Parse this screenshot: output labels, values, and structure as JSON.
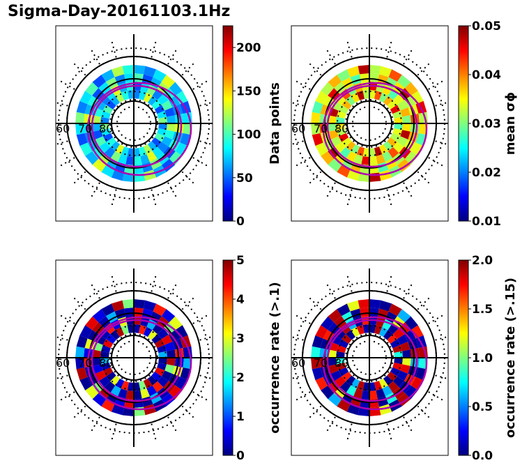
{
  "title": "Sigma-Day-20161103.1Hz",
  "colormap": [
    "#00007f",
    "#0000ff",
    "#007fff",
    "#00ffff",
    "#7fff7f",
    "#ffff00",
    "#ff7f00",
    "#ff0000",
    "#7f0000"
  ],
  "contour_color": "#b000b0",
  "grid_color": "#000000",
  "chart_data": [
    {
      "type": "heatmap",
      "projection": "polar",
      "lat_labels": [
        "60",
        "70",
        "80"
      ],
      "colorbar": {
        "label": "Data points",
        "range": [
          0,
          225
        ],
        "ticks": [
          "0",
          "50",
          "100",
          "150",
          "200"
        ],
        "tick_values": [
          0,
          50,
          100,
          150,
          200
        ]
      },
      "ring_pattern": [
        0.25,
        0.35,
        0.45,
        0.2,
        0.3,
        0.55,
        0.4,
        0.3,
        0.25,
        0.35,
        0.6,
        0.3,
        0.4,
        0.2,
        0.35,
        0.5
      ]
    },
    {
      "type": "heatmap",
      "projection": "polar",
      "lat_labels": [
        "60",
        "70",
        "80"
      ],
      "colorbar": {
        "label": "mean σϕ",
        "range": [
          0.01,
          0.05
        ],
        "ticks": [
          "0.01",
          "0.02",
          "0.03",
          "0.04",
          "0.05"
        ],
        "tick_values": [
          0.01,
          0.02,
          0.03,
          0.04,
          0.05
        ]
      },
      "ring_pattern": [
        0.45,
        0.6,
        0.55,
        0.7,
        0.5,
        0.65,
        0.95,
        0.55,
        0.6,
        0.8,
        0.5,
        0.7,
        0.6,
        0.9,
        0.55,
        0.65
      ]
    },
    {
      "type": "heatmap",
      "projection": "polar",
      "lat_labels": [
        "60",
        "70",
        "80"
      ],
      "colorbar": {
        "label": "occurrence rate (>.1)",
        "range": [
          0,
          5
        ],
        "ticks": [
          "0",
          "1",
          "2",
          "3",
          "4",
          "5"
        ],
        "tick_values": [
          0,
          1,
          2,
          3,
          4,
          5
        ]
      },
      "ring_pattern": [
        0.02,
        0.05,
        0.9,
        0.1,
        0.02,
        0.95,
        0.5,
        0.02,
        0.05,
        0.85,
        0.1,
        0.6,
        0.02,
        0.95,
        0.05,
        0.3
      ]
    },
    {
      "type": "heatmap",
      "projection": "polar",
      "lat_labels": [
        "60",
        "70",
        "80"
      ],
      "colorbar": {
        "label": "occurrence rate (>.15)",
        "range": [
          0,
          2
        ],
        "ticks": [
          "0.0",
          "0.5",
          "1.0",
          "1.5",
          "2.0"
        ],
        "tick_values": [
          0,
          0.5,
          1.0,
          1.5,
          2.0
        ]
      },
      "ring_pattern": [
        0.02,
        0.9,
        0.05,
        0.95,
        0.02,
        0.6,
        0.9,
        0.05,
        0.02,
        0.95,
        0.3,
        0.02,
        0.85,
        0.05,
        0.95,
        0.4
      ]
    }
  ]
}
